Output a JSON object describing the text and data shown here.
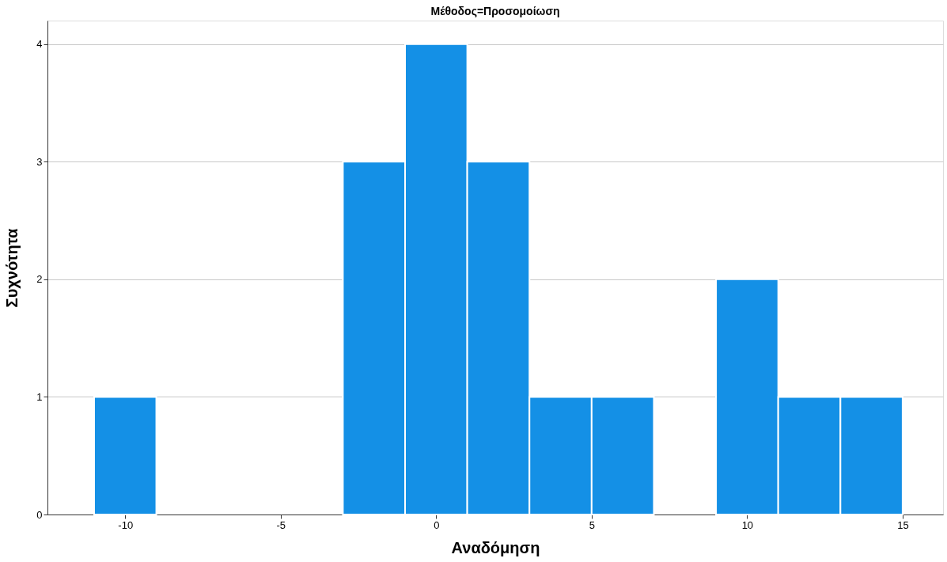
{
  "chart_data": {
    "type": "histogram",
    "title": "Μέθοδος=Προσομοίωση",
    "xlabel": "Αναδόμηση",
    "ylabel": "Συχνότητα",
    "bins": [
      -11,
      -9,
      -7,
      -5,
      -3,
      -1,
      1,
      3,
      5,
      7,
      9,
      11,
      13,
      15
    ],
    "values": [
      1,
      0,
      0,
      0,
      3,
      4,
      3,
      1,
      1,
      0,
      2,
      1,
      1
    ],
    "color": "#1490e6",
    "xlim": [
      -12.5,
      16.3
    ],
    "xticks": [
      -10,
      -5,
      0,
      5,
      10,
      15
    ],
    "ylim": [
      0,
      4.2
    ],
    "yticks": [
      0,
      1,
      2,
      3,
      4
    ],
    "grid": "y"
  }
}
